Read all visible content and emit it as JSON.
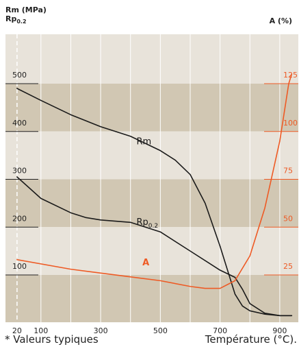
{
  "left_axis_title_line1": "Rm (MPa)",
  "left_axis_title_line2_base": "Rp",
  "left_axis_title_line2_sub": "0.2",
  "right_axis_title": "A (%)",
  "footnote": "* Valeurs typiques",
  "x_axis_caption": "Température (°C).",
  "colors": {
    "band_dark": "#d1c7b3",
    "band_light": "#e8e3da",
    "grid": "#ffffff",
    "black_series": "#1a1a1a",
    "A_series": "#ee5a24",
    "right_ticks": "#ee5a24",
    "left_ticks": "#222222"
  },
  "chart_data": {
    "type": "line",
    "x_ticks": [
      20,
      100,
      300,
      500,
      700,
      900
    ],
    "xlim": [
      0,
      1000
    ],
    "y_left": {
      "ticks": [
        100,
        200,
        300,
        400,
        500
      ],
      "ylim": [
        0,
        550
      ]
    },
    "y_right": {
      "ticks": [
        25,
        50,
        75,
        100,
        125
      ],
      "ylim": [
        0,
        137.5
      ]
    },
    "series": [
      {
        "name": "Rm",
        "axis": "left",
        "label": "Rm",
        "label_sub": "",
        "label_at": [
          420,
          373
        ],
        "x": [
          20,
          100,
          200,
          300,
          400,
          500,
          550,
          600,
          650,
          700,
          750,
          775,
          800,
          850,
          900,
          940
        ],
        "y": [
          490,
          465,
          435,
          410,
          390,
          360,
          340,
          310,
          250,
          160,
          60,
          35,
          25,
          18,
          15,
          15
        ]
      },
      {
        "name": "Rp0.2",
        "axis": "left",
        "label": "Rp",
        "label_sub": "0.2",
        "label_at": [
          420,
          205
        ],
        "x": [
          20,
          100,
          200,
          250,
          300,
          400,
          500,
          600,
          700,
          750,
          775,
          800,
          850,
          900,
          940
        ],
        "y": [
          305,
          260,
          230,
          220,
          215,
          210,
          190,
          150,
          110,
          95,
          70,
          40,
          20,
          15,
          15
        ]
      },
      {
        "name": "A",
        "axis": "right",
        "label": "A",
        "label_sub": "",
        "label_at": [
          440,
          30
        ],
        "x": [
          20,
          200,
          400,
          500,
          600,
          650,
          700,
          750,
          800,
          850,
          900,
          930,
          940
        ],
        "y": [
          33,
          28,
          24,
          22,
          19,
          18,
          18,
          22,
          35,
          60,
          95,
          125,
          130
        ]
      }
    ]
  }
}
